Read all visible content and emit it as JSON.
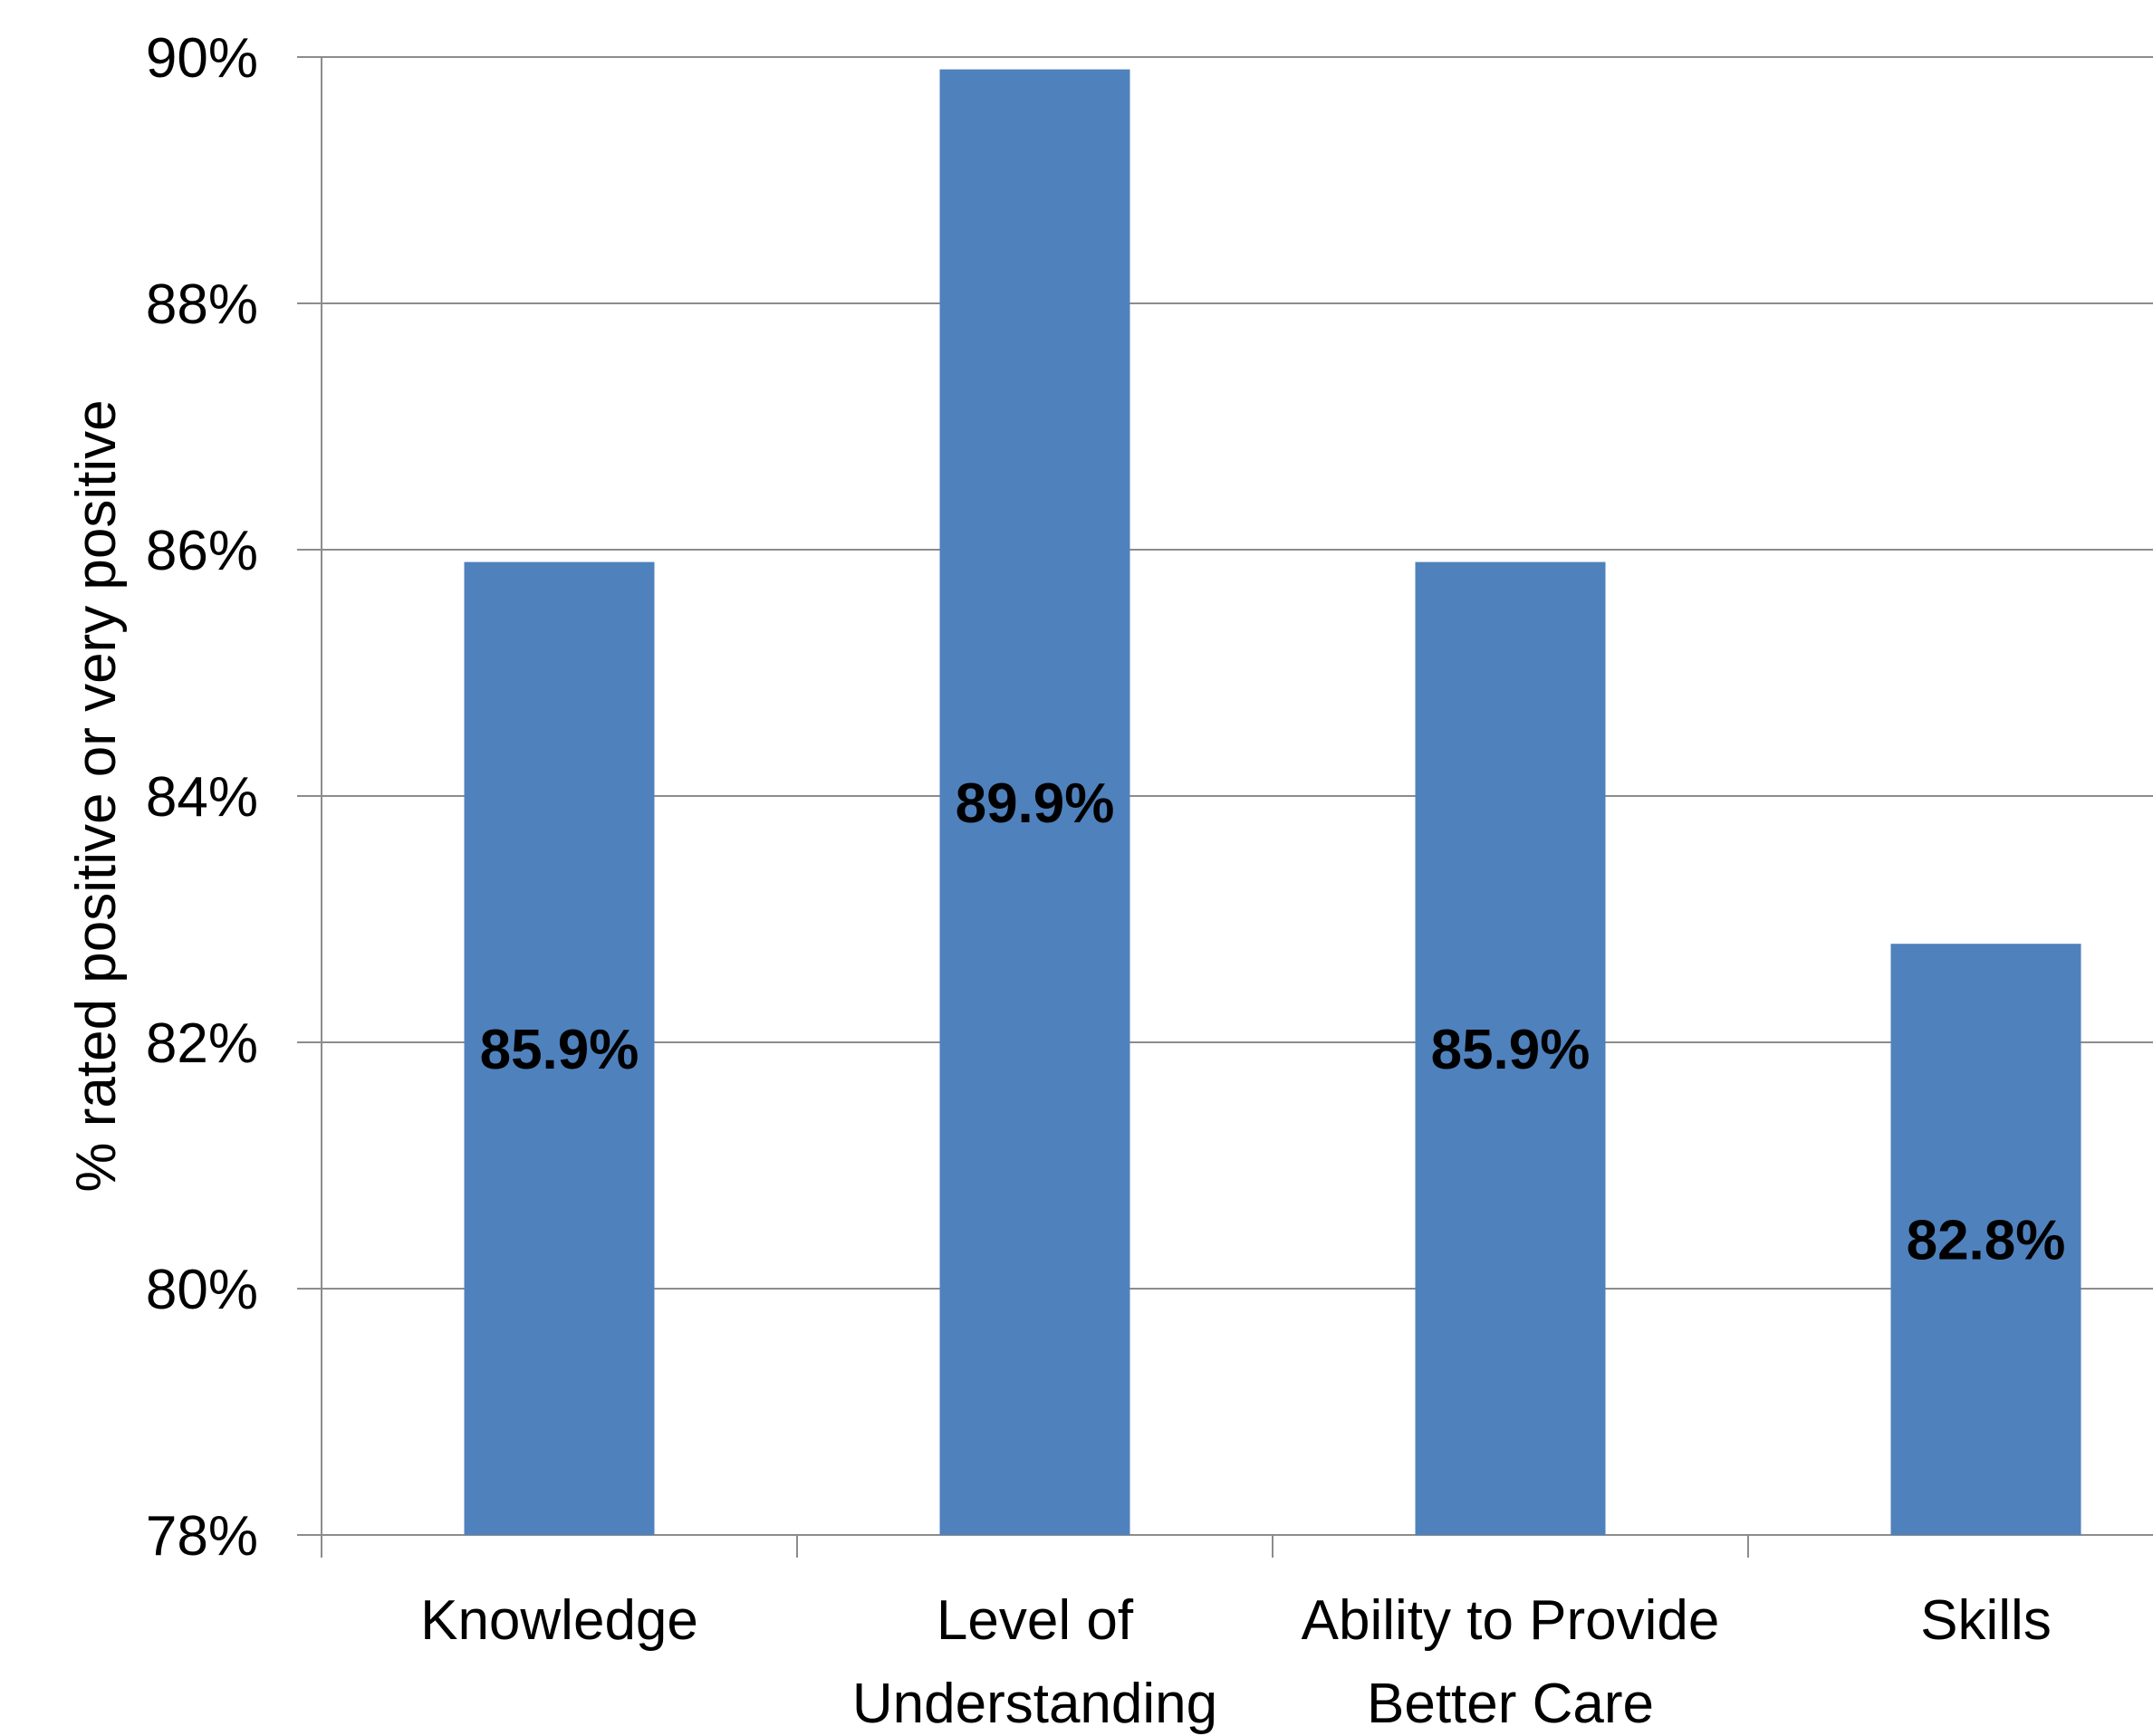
{
  "chart_data": {
    "type": "bar",
    "title": "",
    "xlabel": "",
    "ylabel": "% rated positive or very positive",
    "categories": [
      [
        "Knowledge"
      ],
      [
        "Level of",
        "Understanding"
      ],
      [
        "Ability to Provide",
        "Better Care"
      ],
      [
        "Skills"
      ]
    ],
    "values": [
      85.9,
      89.9,
      85.9,
      82.8
    ],
    "data_labels": [
      "85.9%",
      "89.9%",
      "85.9%",
      "82.8%"
    ],
    "ylim": [
      78,
      90
    ],
    "yticks": [
      78,
      80,
      82,
      84,
      86,
      88,
      90
    ],
    "ytick_labels": [
      "78%",
      "80%",
      "82%",
      "84%",
      "86%",
      "88%",
      "90%"
    ],
    "grid": true,
    "legend": "none",
    "colors": {
      "bar": "#4F81BD",
      "grid": "#8C8C8C",
      "axis": "#8C8C8C"
    }
  }
}
